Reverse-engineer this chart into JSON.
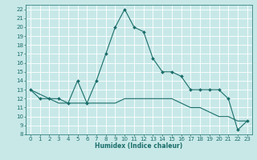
{
  "title": "",
  "xlabel": "Humidex (Indice chaleur)",
  "ylabel": "",
  "background_color": "#c8e8e8",
  "line_color": "#1a6e6a",
  "grid_color": "#ffffff",
  "xlim": [
    -0.5,
    23.5
  ],
  "ylim": [
    8,
    22.5
  ],
  "yticks": [
    8,
    9,
    10,
    11,
    12,
    13,
    14,
    15,
    16,
    17,
    18,
    19,
    20,
    21,
    22
  ],
  "xticks": [
    0,
    1,
    2,
    3,
    4,
    5,
    6,
    7,
    8,
    9,
    10,
    11,
    12,
    13,
    14,
    15,
    16,
    17,
    18,
    19,
    20,
    21,
    22,
    23
  ],
  "line1_x": [
    0,
    1,
    2,
    3,
    4,
    5,
    6,
    7,
    8,
    9,
    10,
    11,
    12,
    13,
    14,
    15,
    16,
    17,
    18,
    19,
    20,
    21,
    22,
    23
  ],
  "line1_y": [
    13,
    12,
    12,
    12,
    11.5,
    14,
    11.5,
    14,
    17,
    20,
    22,
    20,
    19.5,
    16.5,
    15,
    15,
    14.5,
    13,
    13,
    13,
    13,
    12,
    8.5,
    9.5
  ],
  "line2_x": [
    0,
    1,
    2,
    3,
    4,
    5,
    6,
    7,
    8,
    9,
    10,
    11,
    12,
    13,
    14,
    15,
    16,
    17,
    18,
    19,
    20,
    21,
    22,
    23
  ],
  "line2_y": [
    13,
    12.5,
    12,
    11.5,
    11.5,
    11.5,
    11.5,
    11.5,
    11.5,
    11.5,
    12,
    12,
    12,
    12,
    12,
    12,
    11.5,
    11,
    11,
    10.5,
    10,
    10,
    9.5,
    9.5
  ],
  "marker_size": 2.0,
  "linewidth": 0.8,
  "tick_labelsize": 5,
  "xlabel_fontsize": 5.5,
  "xlabel_fontweight": "bold"
}
